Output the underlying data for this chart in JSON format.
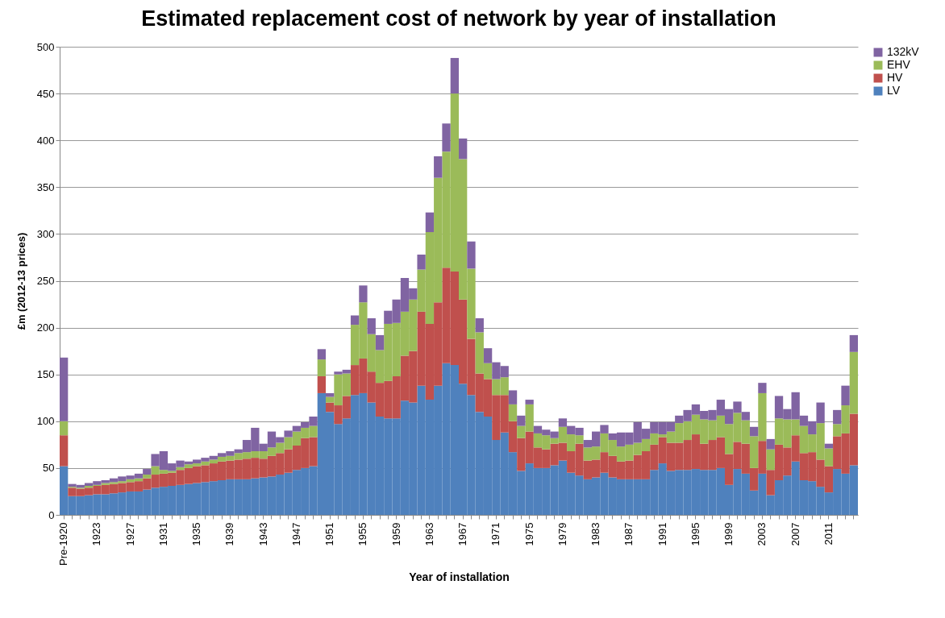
{
  "chart_data": {
    "type": "bar",
    "stacked": true,
    "title": "Estimated replacement cost of network by year of installation",
    "xlabel": "Year of installation",
    "ylabel": "£m (2012-13 prices)",
    "categories": [
      "Pre-1920",
      null,
      null,
      null,
      "1923",
      null,
      null,
      null,
      "1927",
      null,
      null,
      null,
      "1931",
      null,
      null,
      null,
      "1935",
      null,
      null,
      null,
      "1939",
      null,
      null,
      null,
      "1943",
      null,
      null,
      null,
      "1947",
      null,
      null,
      null,
      "1951",
      null,
      null,
      null,
      "1955",
      null,
      null,
      null,
      "1959",
      null,
      null,
      null,
      "1963",
      null,
      null,
      null,
      "1967",
      null,
      null,
      null,
      "1971",
      null,
      null,
      null,
      "1975",
      null,
      null,
      null,
      "1979",
      null,
      null,
      null,
      "1983",
      null,
      null,
      null,
      "1987",
      null,
      null,
      null,
      "1991",
      null,
      null,
      null,
      "1995",
      null,
      null,
      null,
      "1999",
      null,
      null,
      null,
      "2003",
      null,
      null,
      null,
      "2007",
      null,
      null,
      null,
      "2011",
      null,
      null,
      null
    ],
    "series": [
      {
        "name": "LV",
        "color": "#4f81bd",
        "values": [
          52,
          20,
          20,
          21,
          22,
          22,
          23,
          24,
          25,
          25,
          27,
          29,
          30,
          31,
          32,
          33,
          34,
          35,
          36,
          37,
          38,
          38,
          38,
          39,
          40,
          41,
          43,
          45,
          48,
          50,
          52,
          130,
          110,
          97,
          103,
          128,
          130,
          120,
          105,
          103,
          103,
          122,
          120,
          138,
          123,
          138,
          162,
          160,
          140,
          128,
          110,
          105,
          80,
          88,
          67,
          47,
          55,
          50,
          50,
          53,
          58,
          45,
          42,
          38,
          40,
          45,
          40,
          38,
          38,
          38,
          38,
          48,
          55,
          47,
          48,
          48,
          49,
          48,
          48,
          50,
          32,
          49,
          44,
          26,
          44,
          21,
          37,
          42,
          57,
          37,
          36,
          30,
          24,
          49,
          44,
          53
        ]
      },
      {
        "name": "HV",
        "color": "#c0504d",
        "values": [
          33,
          9,
          8,
          8,
          9,
          10,
          10,
          10,
          10,
          11,
          12,
          14,
          14,
          14,
          16,
          17,
          18,
          18,
          19,
          20,
          20,
          21,
          22,
          22,
          20,
          22,
          23,
          25,
          26,
          32,
          31,
          18,
          10,
          20,
          24,
          32,
          37,
          33,
          36,
          40,
          45,
          48,
          55,
          79,
          81,
          89,
          102,
          100,
          90,
          60,
          41,
          40,
          48,
          40,
          33,
          35,
          34,
          22,
          20,
          23,
          19,
          23,
          34,
          20,
          19,
          22,
          23,
          19,
          20,
          26,
          30,
          27,
          28,
          30,
          29,
          32,
          37,
          28,
          32,
          33,
          33,
          29,
          32,
          24,
          35,
          27,
          38,
          30,
          28,
          29,
          31,
          29,
          28,
          35,
          43,
          55
        ]
      },
      {
        "name": "EHV",
        "color": "#9bbb59",
        "values": [
          15,
          1,
          1,
          2,
          1,
          2,
          2,
          2,
          3,
          3,
          4,
          9,
          4,
          2,
          3,
          4,
          3,
          4,
          4,
          5,
          5,
          7,
          7,
          7,
          8,
          9,
          11,
          13,
          15,
          11,
          12,
          18,
          6,
          33,
          24,
          43,
          60,
          40,
          35,
          61,
          57,
          47,
          55,
          45,
          98,
          133,
          124,
          190,
          150,
          75,
          44,
          17,
          17,
          19,
          18,
          13,
          29,
          15,
          15,
          6,
          17,
          18,
          9,
          14,
          14,
          20,
          17,
          16,
          17,
          13,
          13,
          12,
          3,
          12,
          21,
          20,
          21,
          26,
          21,
          23,
          32,
          31,
          25,
          34,
          51,
          22,
          28,
          30,
          17,
          29,
          19,
          39,
          19,
          13,
          30,
          66
        ]
      },
      {
        "name": "132kV",
        "color": "#8064a2",
        "values": [
          68,
          3,
          3,
          3,
          4,
          3,
          4,
          5,
          4,
          5,
          6,
          13,
          20,
          8,
          7,
          3,
          4,
          4,
          4,
          4,
          5,
          4,
          13,
          25,
          8,
          17,
          6,
          7,
          6,
          6,
          10,
          11,
          4,
          3,
          4,
          10,
          18,
          17,
          16,
          14,
          25,
          36,
          12,
          16,
          21,
          23,
          30,
          38,
          22,
          29,
          15,
          16,
          18,
          12,
          15,
          11,
          5,
          8,
          6,
          7,
          9,
          9,
          8,
          8,
          16,
          9,
          7,
          15,
          13,
          22,
          11,
          12,
          13,
          10,
          8,
          12,
          11,
          9,
          11,
          17,
          16,
          12,
          9,
          10,
          11,
          11,
          24,
          11,
          29,
          11,
          14,
          22,
          5,
          15,
          21,
          18
        ]
      }
    ],
    "ylim": [
      0,
      500
    ],
    "yticks": [
      0,
      50,
      100,
      150,
      200,
      250,
      300,
      350,
      400,
      450,
      500
    ],
    "grid": "y",
    "legend": "right"
  }
}
